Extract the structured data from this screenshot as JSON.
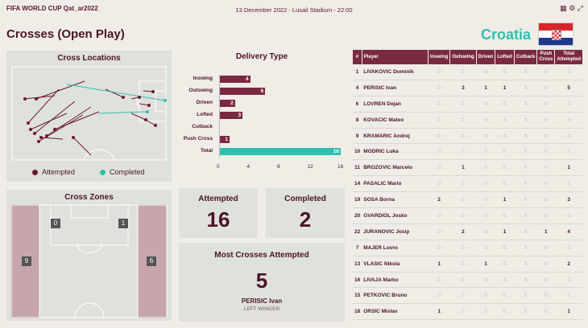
{
  "header": {
    "brand": "FIFA WORLD CUP Qat_ar2022",
    "match_info": "13 December 2022 - Lusail Stadium - 22:00",
    "icons": [
      "grid-icon",
      "settings-icon",
      "expand-icon"
    ]
  },
  "page_title": "Crosses (Open Play)",
  "team": {
    "name": "Croatia"
  },
  "cross_locations": {
    "title": "Cross Locations",
    "legend_attempted": "Attempted",
    "legend_completed": "Completed",
    "attempted_color": "#6b1a2e",
    "completed_color": "#2fbfae"
  },
  "delivery_type": {
    "title": "Delivery Type",
    "axis_ticks": [
      "0",
      "4",
      "8",
      "12",
      "16"
    ],
    "max": 16,
    "rows": [
      {
        "label": "Inswing",
        "value": 4
      },
      {
        "label": "Outswing",
        "value": 6
      },
      {
        "label": "Driven",
        "value": 2
      },
      {
        "label": "Lofted",
        "value": 3
      },
      {
        "label": "Cutback",
        "value": 0
      },
      {
        "label": "Push Cross",
        "value": 1
      },
      {
        "label": "Total",
        "value": 16
      }
    ]
  },
  "cross_zones": {
    "title": "Cross Zones",
    "zones": {
      "left_wing": "9",
      "right_wing": "6",
      "left_box": "0",
      "right_box": "1"
    }
  },
  "stats": {
    "attempted_label": "Attempted",
    "attempted_value": "16",
    "completed_label": "Completed",
    "completed_value": "2"
  },
  "most_crosses": {
    "title": "Most Crosses Attempted",
    "value": "5",
    "player": "PERISIC Ivan",
    "position": "LEFT WINGER"
  },
  "table": {
    "headers": [
      "#",
      "Player",
      "Inswing",
      "Outswing",
      "Driven",
      "Lofted",
      "Cutback",
      "Push Cross",
      "Total Attempted"
    ],
    "rows": [
      [
        "1",
        "LIVAKOVIC Dominik",
        "0",
        "0",
        "0",
        "0",
        "0",
        "0",
        "0"
      ],
      [
        "4",
        "PERISIC Ivan",
        "0",
        "3",
        "1",
        "1",
        "0",
        "0",
        "5"
      ],
      [
        "6",
        "LOVREN Dejan",
        "0",
        "0",
        "0",
        "0",
        "0",
        "0",
        "0"
      ],
      [
        "8",
        "KOVACIC Mateo",
        "0",
        "0",
        "0",
        "0",
        "0",
        "0",
        "0"
      ],
      [
        "9",
        "KRAMARIC Andrej",
        "0",
        "0",
        "0",
        "0",
        "0",
        "0",
        "0"
      ],
      [
        "10",
        "MODRIC Luka",
        "0",
        "0",
        "0",
        "0",
        "0",
        "0",
        "0"
      ],
      [
        "11",
        "BROZOVIC Marcelo",
        "0",
        "1",
        "0",
        "0",
        "0",
        "0",
        "1"
      ],
      [
        "14",
        "PASALIC Mario",
        "0",
        "0",
        "0",
        "0",
        "0",
        "0",
        "0"
      ],
      [
        "19",
        "SOSA Borna",
        "2",
        "0",
        "0",
        "1",
        "0",
        "0",
        "3"
      ],
      [
        "20",
        "GVARDIOL Josko",
        "0",
        "0",
        "0",
        "0",
        "0",
        "0",
        "0"
      ],
      [
        "22",
        "JURANOVIC Josip",
        "0",
        "2",
        "0",
        "1",
        "0",
        "1",
        "4"
      ],
      [
        "7",
        "MAJER Lovro",
        "0",
        "0",
        "0",
        "0",
        "0",
        "0",
        "0"
      ],
      [
        "13",
        "VLASIC Nikola",
        "1",
        "0",
        "1",
        "0",
        "0",
        "0",
        "2"
      ],
      [
        "16",
        "LIVAJA Marko",
        "0",
        "0",
        "0",
        "0",
        "0",
        "0",
        "0"
      ],
      [
        "15",
        "PETKOVIC Bruno",
        "0",
        "0",
        "0",
        "0",
        "0",
        "0",
        "0"
      ],
      [
        "18",
        "ORSIC Mislav",
        "1",
        "0",
        "0",
        "0",
        "0",
        "0",
        "1"
      ]
    ]
  }
}
